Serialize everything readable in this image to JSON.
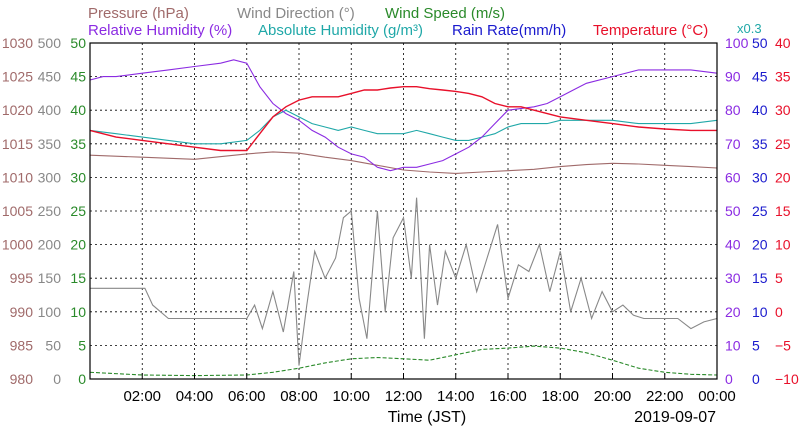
{
  "chart_data": {
    "type": "line",
    "date": "2019-09-07",
    "xlabel": "Time (JST)",
    "x_ticks": [
      "02:00",
      "04:00",
      "06:00",
      "08:00",
      "10:00",
      "12:00",
      "14:00",
      "16:00",
      "18:00",
      "20:00",
      "22:00",
      "00:00"
    ],
    "x_hours": [
      2,
      4,
      6,
      8,
      10,
      12,
      14,
      16,
      18,
      20,
      22,
      24
    ],
    "xlim": [
      0,
      24
    ],
    "grid": true,
    "legend_placement": "top",
    "legend_row1": [
      {
        "label": "Pressure (hPa)",
        "color": "#a06a6a"
      },
      {
        "label": "Wind Direction (°)",
        "color": "#888888"
      },
      {
        "label": "Wind Speed (m/s)",
        "color": "#2a8a2a"
      }
    ],
    "legend_row2": [
      {
        "label": "Relative Humidity (%)",
        "color": "#8b2be2"
      },
      {
        "label": "Absolute Humidity (g/m³)",
        "color": "#20a8a8"
      },
      {
        "label": "Rain Rate(mm/h)",
        "color": "#1a1acd"
      },
      {
        "label": "Temperature (°C)",
        "color": "#e8102a"
      }
    ],
    "scale_note": "x0.3",
    "axes": {
      "pressure": {
        "ticks": [
          "980",
          "985",
          "990",
          "995",
          "1000",
          "1005",
          "1010",
          "1015",
          "1020",
          "1025",
          "1030"
        ],
        "ylim": [
          980,
          1030
        ],
        "color": "#a06a6a"
      },
      "wind_direction": {
        "ticks": [
          "0",
          "50",
          "100",
          "150",
          "200",
          "250",
          "300",
          "350",
          "400",
          "450",
          "500"
        ],
        "ylim": [
          0,
          500
        ],
        "color": "#888888"
      },
      "wind_speed": {
        "ticks": [
          "0",
          "5",
          "10",
          "15",
          "20",
          "25",
          "30",
          "35",
          "40",
          "45",
          "50"
        ],
        "ylim": [
          0,
          50
        ],
        "color": "#2a8a2a"
      },
      "humidity": {
        "ticks": [
          "0",
          "10",
          "20",
          "30",
          "40",
          "50",
          "60",
          "70",
          "80",
          "90",
          "100"
        ],
        "ylim": [
          0,
          100
        ],
        "color": "#8b2be2"
      },
      "rain": {
        "ticks": [
          "0",
          "5",
          "10",
          "15",
          "20",
          "25",
          "30",
          "35",
          "40",
          "45",
          "50"
        ],
        "ylim": [
          0,
          50
        ],
        "color": "#1a1acd"
      },
      "temperature": {
        "ticks": [
          "−10",
          "−5",
          "0",
          "5",
          "10",
          "15",
          "20",
          "25",
          "30",
          "35",
          "40"
        ],
        "ylim": [
          -10,
          40
        ],
        "color": "#e8102a"
      }
    },
    "series": [
      {
        "name": "Pressure (hPa)",
        "axis": "pressure",
        "color": "#a06a6a",
        "x": [
          0,
          2,
          4,
          6,
          7,
          8,
          9,
          10,
          11,
          12,
          13,
          14,
          15,
          16,
          17,
          18,
          19,
          20,
          21,
          22,
          23,
          24
        ],
        "y": [
          1013.3,
          1013.0,
          1012.7,
          1013.5,
          1013.8,
          1013.6,
          1013.0,
          1012.5,
          1011.8,
          1011.1,
          1010.8,
          1010.6,
          1010.8,
          1011.0,
          1011.2,
          1011.6,
          1011.9,
          1012.1,
          1012.0,
          1011.8,
          1011.6,
          1011.4
        ]
      },
      {
        "name": "Wind Direction (°)",
        "axis": "wind_direction",
        "color": "#888888",
        "x": [
          0,
          2.1,
          2.4,
          3,
          4,
          5,
          6,
          6.3,
          6.6,
          7,
          7.4,
          7.8,
          8,
          8.3,
          8.6,
          9,
          9.4,
          9.7,
          10,
          10.3,
          10.6,
          11,
          11.3,
          11.6,
          12,
          12.3,
          12.5,
          12.8,
          13,
          13.3,
          13.6,
          14,
          14.4,
          14.8,
          15.2,
          15.6,
          16,
          16.4,
          16.8,
          17.2,
          17.6,
          18,
          18.4,
          18.8,
          19.2,
          19.6,
          20,
          20.4,
          20.8,
          21.2,
          21.6,
          22,
          22.5,
          23,
          23.5,
          24
        ],
        "y": [
          135,
          135,
          110,
          90,
          90,
          90,
          90,
          110,
          75,
          130,
          70,
          160,
          20,
          110,
          190,
          150,
          180,
          240,
          250,
          120,
          60,
          250,
          100,
          210,
          240,
          150,
          270,
          60,
          200,
          110,
          190,
          150,
          200,
          130,
          180,
          230,
          120,
          170,
          160,
          200,
          130,
          190,
          100,
          150,
          90,
          130,
          100,
          110,
          95,
          90,
          90,
          90,
          90,
          75,
          85,
          90
        ]
      },
      {
        "name": "Wind Speed (m/s)",
        "axis": "wind_speed",
        "color": "#2a8a2a",
        "x": [
          0,
          2,
          4,
          6,
          7,
          8,
          9,
          10,
          11,
          12,
          13,
          14,
          15,
          16,
          17,
          18,
          19,
          20,
          21,
          22,
          23,
          24
        ],
        "y": [
          1.0,
          0.6,
          0.5,
          0.6,
          1.0,
          1.6,
          2.4,
          3.0,
          3.2,
          3.0,
          2.8,
          3.6,
          4.4,
          4.6,
          4.9,
          4.6,
          3.9,
          2.8,
          1.6,
          1.0,
          0.7,
          0.6
        ]
      },
      {
        "name": "Relative Humidity (%)",
        "axis": "humidity",
        "color": "#8b2be2",
        "x": [
          0,
          0.5,
          1,
          2,
          3,
          4,
          5,
          5.5,
          6,
          6.5,
          7,
          7.5,
          8,
          8.5,
          9,
          9.5,
          10,
          10.5,
          11,
          11.5,
          12,
          12.5,
          13,
          13.5,
          14,
          14.5,
          15,
          15.5,
          16,
          17,
          17.5,
          18,
          18.5,
          19,
          20,
          21,
          22,
          23,
          24
        ],
        "y": [
          89,
          90,
          90,
          91,
          92,
          93,
          94,
          95,
          94,
          87,
          82,
          79,
          77,
          74,
          72,
          69,
          67,
          66,
          63,
          62,
          63,
          63,
          64,
          65,
          67,
          69,
          72,
          76,
          80,
          81,
          82,
          84,
          86,
          88,
          90,
          92,
          92,
          92,
          91
        ]
      },
      {
        "name": "Absolute Humidity (g/m³)",
        "axis": "humidity",
        "color": "#20a8a8",
        "x": [
          0,
          1,
          2,
          3,
          4,
          5,
          6,
          6.5,
          7,
          7.5,
          8,
          8.5,
          9,
          9.5,
          10,
          10.5,
          11,
          11.5,
          12,
          12.5,
          13,
          13.5,
          14,
          14.5,
          15,
          15.5,
          16,
          16.5,
          17,
          17.5,
          18,
          19,
          20,
          21,
          22,
          23,
          24
        ],
        "y": [
          74,
          73,
          72,
          71,
          70,
          70,
          71,
          74,
          78,
          80,
          78,
          76,
          75,
          74,
          75,
          74,
          73,
          73,
          73,
          74,
          73,
          72,
          71,
          71,
          72,
          73,
          75,
          76,
          76,
          76,
          77,
          77,
          77,
          76,
          76,
          76,
          77
        ]
      },
      {
        "name": "Temperature (°C)",
        "axis": "temperature",
        "color": "#e8102a",
        "x": [
          0,
          1,
          2,
          3,
          4,
          5,
          6,
          6.5,
          7,
          7.5,
          8,
          8.5,
          9,
          9.5,
          10,
          10.5,
          11,
          11.5,
          12,
          12.5,
          13,
          13.5,
          14,
          14.5,
          15,
          15.5,
          16,
          16.5,
          17,
          17.5,
          18,
          19,
          20,
          21,
          22,
          23,
          24
        ],
        "y": [
          27,
          26,
          25.5,
          25,
          24.5,
          24,
          24,
          26.5,
          29,
          30.5,
          31.5,
          32,
          32,
          32,
          32.5,
          33,
          33,
          33.3,
          33.5,
          33.5,
          33.2,
          33,
          32.8,
          32.5,
          32,
          31,
          30.5,
          30.5,
          30,
          29.5,
          29,
          28.5,
          28,
          27.5,
          27.2,
          27,
          27
        ]
      },
      {
        "name": "Rain Rate(mm/h)",
        "axis": "rain",
        "color": "#1a1acd",
        "x": [
          0,
          24
        ],
        "y": [
          0,
          0
        ]
      }
    ]
  }
}
